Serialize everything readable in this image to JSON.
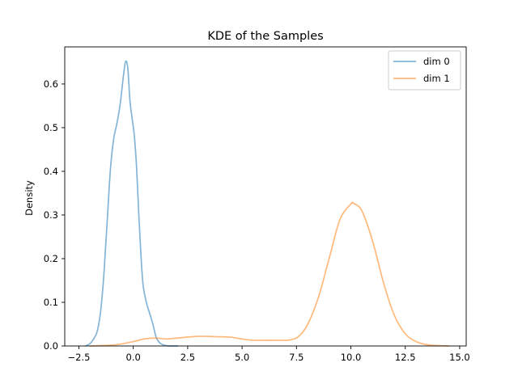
{
  "chart_data": {
    "type": "line",
    "title": "KDE of the Samples",
    "xlabel": "",
    "ylabel": "Density",
    "xlim": [
      -3.15,
      15.3
    ],
    "ylim": [
      0,
      0.685
    ],
    "xticks": [
      -2.5,
      0.0,
      2.5,
      5.0,
      7.5,
      10.0,
      12.5,
      15.0
    ],
    "xtick_labels": [
      "−2.5",
      "0.0",
      "2.5",
      "5.0",
      "7.5",
      "10.0",
      "12.5",
      "15.0"
    ],
    "yticks": [
      0.0,
      0.1,
      0.2,
      0.3,
      0.4,
      0.5,
      0.6
    ],
    "ytick_labels": [
      "0.0",
      "0.1",
      "0.2",
      "0.3",
      "0.4",
      "0.5",
      "0.6"
    ],
    "grid": false,
    "legend_position": "top-right",
    "series": [
      {
        "name": "dim 0",
        "color": "#1f77b4",
        "x": [
          -2.2,
          -2.0,
          -1.8,
          -1.65,
          -1.5,
          -1.35,
          -1.2,
          -1.05,
          -0.9,
          -0.75,
          -0.6,
          -0.45,
          -0.35,
          -0.25,
          -0.15,
          -0.05,
          0.05,
          0.15,
          0.25,
          0.35,
          0.45,
          0.6,
          0.75,
          0.9,
          1.05,
          1.2,
          1.35,
          1.5,
          1.65,
          1.8,
          1.95,
          2.05
        ],
        "y": [
          0.0,
          0.005,
          0.018,
          0.035,
          0.08,
          0.165,
          0.285,
          0.405,
          0.475,
          0.51,
          0.555,
          0.62,
          0.652,
          0.635,
          0.56,
          0.52,
          0.48,
          0.41,
          0.305,
          0.21,
          0.14,
          0.1,
          0.075,
          0.05,
          0.02,
          0.008,
          0.003,
          0.001,
          0.0,
          0.0,
          0.0,
          0.0
        ]
      },
      {
        "name": "dim 1",
        "color": "#ff7f0e",
        "x": [
          -2.0,
          -1.0,
          -0.5,
          0.0,
          0.5,
          1.0,
          1.5,
          2.0,
          3.0,
          4.0,
          4.5,
          5.0,
          5.5,
          6.0,
          7.0,
          7.3,
          7.6,
          8.0,
          8.5,
          9.0,
          9.5,
          10.0,
          10.1,
          10.5,
          11.0,
          11.5,
          12.0,
          12.5,
          13.0,
          13.5,
          14.0,
          14.5
        ],
        "y": [
          0.0,
          0.002,
          0.005,
          0.01,
          0.016,
          0.018,
          0.016,
          0.018,
          0.022,
          0.021,
          0.02,
          0.016,
          0.013,
          0.013,
          0.013,
          0.015,
          0.022,
          0.048,
          0.11,
          0.2,
          0.29,
          0.325,
          0.327,
          0.31,
          0.24,
          0.145,
          0.07,
          0.028,
          0.01,
          0.003,
          0.001,
          0.0
        ]
      }
    ]
  }
}
